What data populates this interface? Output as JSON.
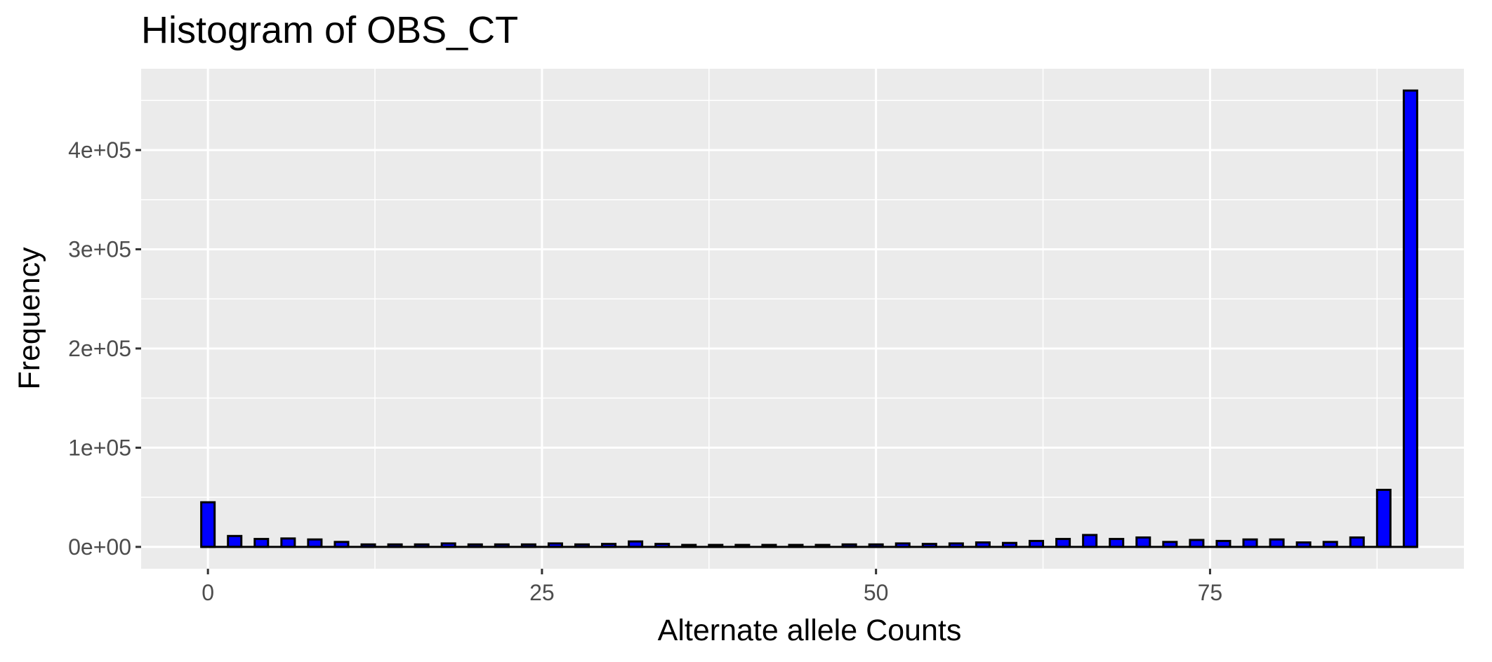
{
  "chart_data": {
    "type": "bar",
    "title": "Histogram of OBS_CT",
    "xlabel": "Alternate allele Counts",
    "ylabel": "Frequency",
    "xlim": [
      -5,
      94
    ],
    "ylim": [
      -22000,
      482000
    ],
    "x_ticks": [
      0,
      25,
      50,
      75
    ],
    "x_tick_labels": [
      "0",
      "25",
      "50",
      "75"
    ],
    "y_ticks": [
      0,
      100000,
      200000,
      300000,
      400000
    ],
    "y_tick_labels": [
      "0e+00",
      "1e+05",
      "2e+05",
      "3e+05",
      "4e+05"
    ],
    "bin_width": 1,
    "x": [
      0,
      2,
      4,
      6,
      8,
      10,
      12,
      14,
      16,
      18,
      20,
      22,
      24,
      26,
      28,
      30,
      32,
      34,
      36,
      38,
      40,
      42,
      44,
      46,
      48,
      50,
      52,
      54,
      56,
      58,
      60,
      62,
      64,
      66,
      68,
      70,
      72,
      74,
      76,
      78,
      80,
      82,
      84,
      86,
      88,
      90
    ],
    "values": [
      45000,
      11000,
      8000,
      8500,
      7500,
      5000,
      2500,
      2500,
      2500,
      3500,
      2500,
      2500,
      2500,
      3500,
      2500,
      3000,
      5500,
      3000,
      2000,
      2000,
      2000,
      2000,
      2000,
      2000,
      2500,
      2500,
      3500,
      3000,
      3500,
      4500,
      4000,
      6000,
      8000,
      12000,
      8000,
      9500,
      5000,
      7000,
      6000,
      7500,
      7500,
      4500,
      5000,
      9500,
      57500,
      460000
    ],
    "bar_fill": "#0000ff",
    "bar_stroke": "#000000",
    "panel_background": "#ebebeb",
    "grid_color": "#ffffff",
    "grid": true,
    "legend": "none"
  }
}
